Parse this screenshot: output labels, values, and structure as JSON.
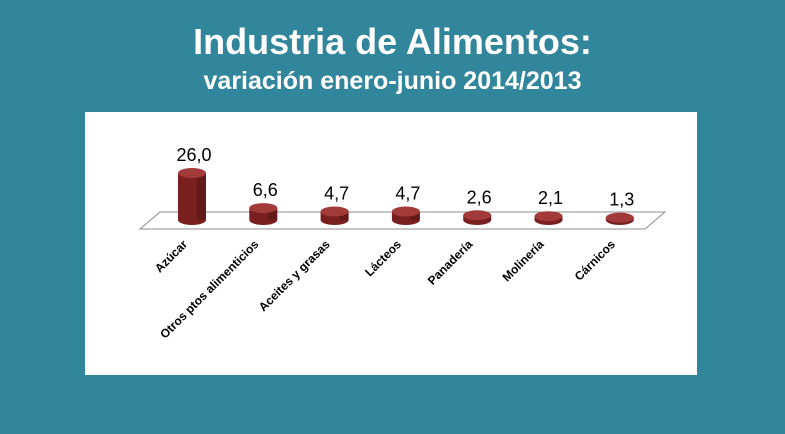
{
  "header": {
    "title": "Industria de Alimentos:",
    "subtitle": "variación enero-junio 2014/2013"
  },
  "colors": {
    "background": "#31869b",
    "panel": "#ffffff",
    "bar_front": "#7a1f1f",
    "bar_top": "#a23a3a"
  },
  "chart_data": {
    "type": "bar",
    "categories": [
      "Azúcar",
      "Otros ptos alimenticios",
      "Aceites y grasas",
      "Lácteos",
      "Panadería",
      "Molinería",
      "Cárnicos"
    ],
    "values": [
      26.0,
      6.6,
      4.7,
      4.7,
      2.6,
      2.1,
      1.3
    ],
    "value_labels": [
      "26,0",
      "6,6",
      "4,7",
      "4,7",
      "2,6",
      "2,1",
      "1,3"
    ],
    "style": "3d-cylinder",
    "ylim": [
      0,
      26.0
    ],
    "grid": false,
    "legend": "none"
  }
}
